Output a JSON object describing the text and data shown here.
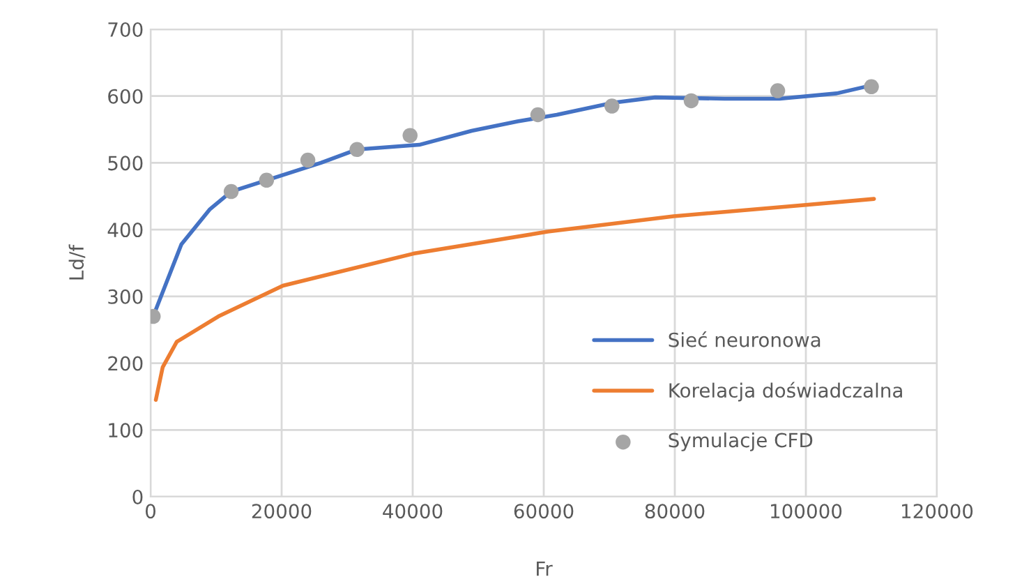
{
  "chart_data": {
    "type": "line",
    "xlabel": "Fr",
    "ylabel": "Ld/f",
    "xlim": [
      0,
      120000
    ],
    "xticks": [
      0,
      20000,
      40000,
      60000,
      80000,
      100000,
      120000
    ],
    "ylim": [
      0,
      700
    ],
    "yticks": [
      0,
      100,
      200,
      300,
      400,
      500,
      600,
      700
    ],
    "grid": true,
    "legend": "bottom right",
    "series": [
      {
        "name": "Sieć neuronowa",
        "color": "#4472c4",
        "x": [
          400,
          4700,
          9000,
          12300,
          17700,
          26000,
          31500,
          41000,
          49000,
          56000,
          62000,
          70600,
          77000,
          87600,
          96000,
          104700,
          110000
        ],
        "values": [
          270,
          378,
          430,
          457,
          474,
          500,
          520,
          527,
          548,
          562,
          572,
          590,
          598,
          596,
          596,
          604,
          616
        ]
      },
      {
        "name": "Korelacja doświadczalna",
        "color": "#ed7d31",
        "x": [
          800,
          1850,
          4000,
          10350,
          20200,
          40100,
          60600,
          79800,
          100000,
          110400
        ],
        "values": [
          145,
          194,
          232,
          270,
          316,
          364,
          397,
          420,
          437,
          446
        ]
      },
      {
        "name": "Symulacje CFD",
        "type": "scatter",
        "color": "#a5a5a5",
        "marker": "circle",
        "x": [
          400,
          12300,
          17700,
          24000,
          31500,
          39600,
          59100,
          70400,
          82500,
          95700,
          110000
        ],
        "values": [
          270,
          457,
          474,
          504,
          520,
          541,
          572,
          585,
          593,
          608,
          614
        ]
      }
    ]
  }
}
